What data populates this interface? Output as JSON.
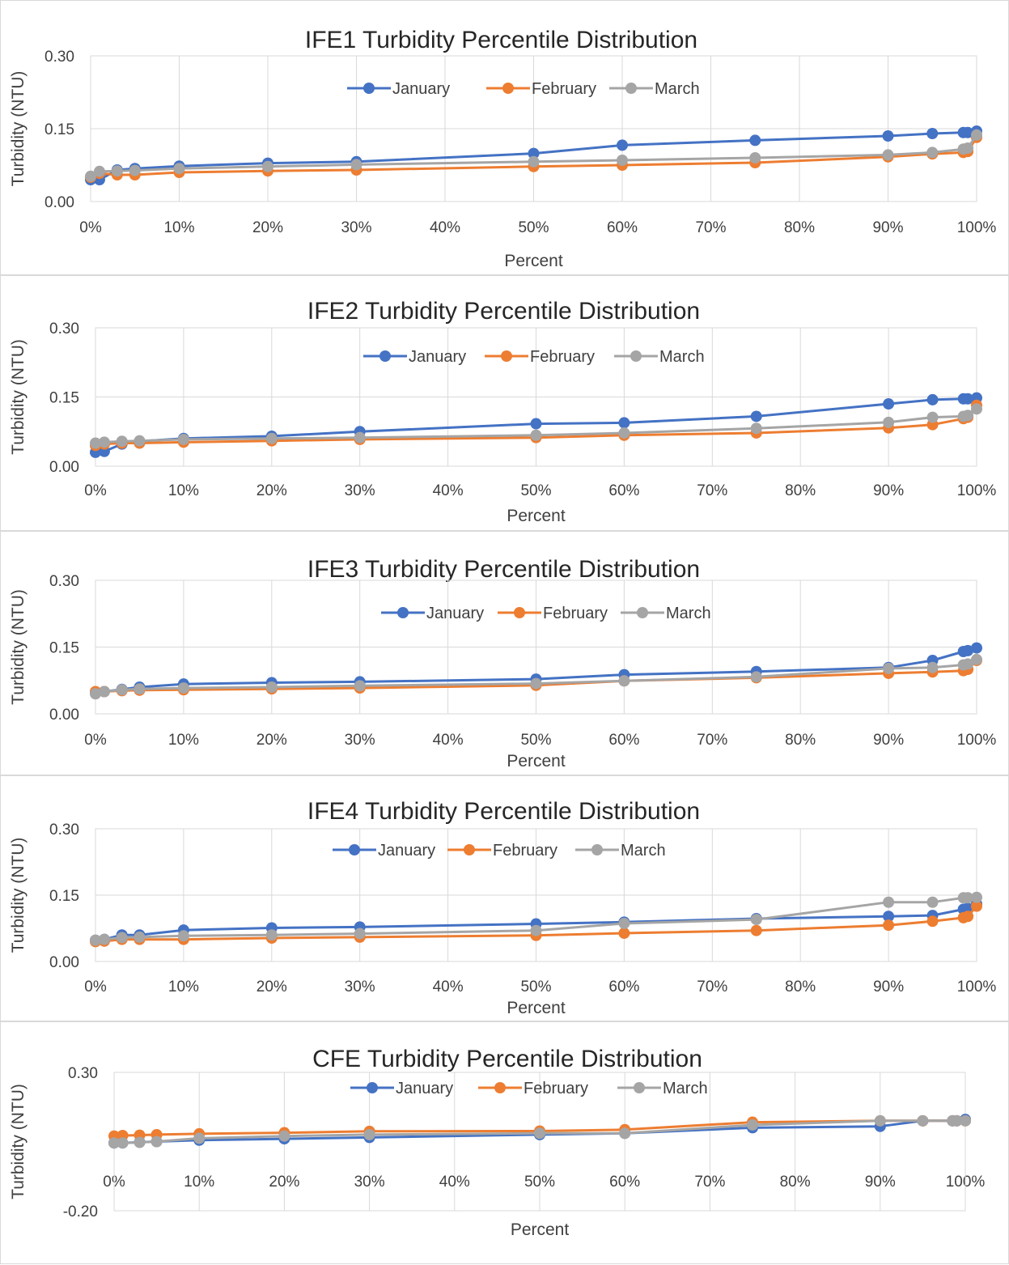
{
  "colors": {
    "January": "#4472c4",
    "February": "#ed7d31",
    "March": "#a5a5a5"
  },
  "chart_data": [
    {
      "type": "line",
      "title": "IFE1 Turbidity Percentile Distribution",
      "xlabel": "Percent",
      "ylabel": "Turbidity (NTU)",
      "x": [
        0,
        1,
        3,
        5,
        10,
        20,
        30,
        50,
        60,
        75,
        90,
        95,
        98.5,
        99,
        100
      ],
      "xlim": [
        0,
        100
      ],
      "ylim": [
        0,
        0.3
      ],
      "xticks": [
        "0%",
        "10%",
        "20%",
        "30%",
        "40%",
        "50%",
        "60%",
        "70%",
        "80%",
        "90%",
        "100%"
      ],
      "yticks": [
        "0.00",
        "0.15",
        "0.30"
      ],
      "grid": true,
      "legend": "top-center",
      "series": [
        {
          "name": "January",
          "values": [
            0.045,
            0.045,
            0.065,
            0.068,
            0.073,
            0.079,
            0.082,
            0.099,
            0.116,
            0.126,
            0.135,
            0.14,
            0.142,
            0.142,
            0.145
          ]
        },
        {
          "name": "February",
          "values": [
            0.05,
            0.058,
            0.055,
            0.055,
            0.06,
            0.063,
            0.065,
            0.072,
            0.075,
            0.08,
            0.092,
            0.098,
            0.101,
            0.103,
            0.132
          ]
        },
        {
          "name": "March",
          "values": [
            0.052,
            0.062,
            0.063,
            0.064,
            0.068,
            0.072,
            0.076,
            0.082,
            0.085,
            0.09,
            0.096,
            0.101,
            0.108,
            0.11,
            0.137
          ]
        }
      ]
    },
    {
      "type": "line",
      "title": "IFE2 Turbidity Percentile Distribution",
      "xlabel": "Percent",
      "ylabel": "Turbidity (NTU)",
      "x": [
        0,
        1,
        3,
        5,
        10,
        20,
        30,
        50,
        60,
        75,
        90,
        95,
        98.5,
        99,
        100
      ],
      "xlim": [
        0,
        100
      ],
      "ylim": [
        0,
        0.3
      ],
      "xticks": [
        "0%",
        "10%",
        "20%",
        "30%",
        "40%",
        "50%",
        "60%",
        "70%",
        "80%",
        "90%",
        "100%"
      ],
      "yticks": [
        "0.00",
        "0.15",
        "0.30"
      ],
      "grid": true,
      "legend": "top-center",
      "series": [
        {
          "name": "January",
          "values": [
            0.03,
            0.032,
            0.048,
            0.054,
            0.06,
            0.065,
            0.075,
            0.092,
            0.094,
            0.108,
            0.135,
            0.144,
            0.146,
            0.146,
            0.148
          ]
        },
        {
          "name": "February",
          "values": [
            0.045,
            0.048,
            0.05,
            0.05,
            0.052,
            0.055,
            0.058,
            0.062,
            0.067,
            0.072,
            0.083,
            0.09,
            0.103,
            0.106,
            0.132
          ]
        },
        {
          "name": "March",
          "values": [
            0.05,
            0.052,
            0.054,
            0.055,
            0.058,
            0.06,
            0.062,
            0.067,
            0.072,
            0.082,
            0.095,
            0.106,
            0.108,
            0.11,
            0.124
          ]
        }
      ]
    },
    {
      "type": "line",
      "title": "IFE3 Turbidity Percentile Distribution",
      "xlabel": "Percent",
      "ylabel": "Turbidity (NTU)",
      "x": [
        0,
        1,
        3,
        5,
        10,
        20,
        30,
        50,
        60,
        75,
        90,
        95,
        98.5,
        99,
        100
      ],
      "xlim": [
        0,
        100
      ],
      "ylim": [
        0,
        0.3
      ],
      "xticks": [
        "0%",
        "10%",
        "20%",
        "30%",
        "40%",
        "50%",
        "60%",
        "70%",
        "80%",
        "90%",
        "100%"
      ],
      "yticks": [
        "0.00",
        "0.15",
        "0.30"
      ],
      "grid": true,
      "legend": "top-center",
      "series": [
        {
          "name": "January",
          "values": [
            0.047,
            0.05,
            0.055,
            0.06,
            0.067,
            0.07,
            0.072,
            0.078,
            0.088,
            0.095,
            0.104,
            0.12,
            0.14,
            0.142,
            0.148
          ]
        },
        {
          "name": "February",
          "values": [
            0.05,
            0.05,
            0.052,
            0.053,
            0.054,
            0.056,
            0.058,
            0.064,
            0.074,
            0.081,
            0.091,
            0.094,
            0.097,
            0.1,
            0.12
          ]
        },
        {
          "name": "March",
          "values": [
            0.045,
            0.05,
            0.054,
            0.056,
            0.058,
            0.06,
            0.063,
            0.068,
            0.074,
            0.083,
            0.102,
            0.104,
            0.11,
            0.112,
            0.122
          ]
        }
      ]
    },
    {
      "type": "line",
      "title": "IFE4 Turbidity Percentile Distribution",
      "xlabel": "Percent",
      "ylabel": "Turbidity (NTU)",
      "x": [
        0,
        1,
        3,
        5,
        10,
        20,
        30,
        50,
        60,
        75,
        90,
        95,
        98.5,
        99,
        100
      ],
      "xlim": [
        0,
        100
      ],
      "ylim": [
        0,
        0.3
      ],
      "xticks": [
        "0%",
        "10%",
        "20%",
        "30%",
        "40%",
        "50%",
        "60%",
        "70%",
        "80%",
        "90%",
        "100%"
      ],
      "yticks": [
        "0.00",
        "0.15",
        "0.30"
      ],
      "grid": true,
      "legend": "top-center",
      "series": [
        {
          "name": "January",
          "values": [
            0.048,
            0.05,
            0.06,
            0.06,
            0.071,
            0.076,
            0.078,
            0.085,
            0.089,
            0.097,
            0.102,
            0.104,
            0.118,
            0.12,
            0.13
          ]
        },
        {
          "name": "February",
          "values": [
            0.045,
            0.046,
            0.05,
            0.05,
            0.05,
            0.053,
            0.055,
            0.059,
            0.064,
            0.07,
            0.082,
            0.091,
            0.099,
            0.102,
            0.125
          ]
        },
        {
          "name": "March",
          "values": [
            0.048,
            0.05,
            0.054,
            0.055,
            0.058,
            0.06,
            0.063,
            0.07,
            0.086,
            0.095,
            0.134,
            0.134,
            0.144,
            0.144,
            0.145
          ]
        }
      ]
    },
    {
      "type": "line",
      "title": "CFE Turbidity Percentile Distribution",
      "xlabel": "Percent",
      "ylabel": "Turbidity (NTU)",
      "x": [
        0,
        1,
        3,
        5,
        10,
        20,
        30,
        50,
        60,
        75,
        90,
        95,
        98.5,
        99,
        100
      ],
      "xlim": [
        0,
        100
      ],
      "ylim": [
        -0.2,
        0.3
      ],
      "xticks": [
        "0%",
        "10%",
        "20%",
        "30%",
        "40%",
        "50%",
        "60%",
        "70%",
        "80%",
        "90%",
        "100%"
      ],
      "yticks": [
        "-0.20",
        "0.30"
      ],
      "grid": true,
      "legend": "top-center",
      "series": [
        {
          "name": "January",
          "values": [
            0.045,
            0.045,
            0.048,
            0.05,
            0.055,
            0.06,
            0.065,
            0.075,
            0.08,
            0.1,
            0.105,
            0.125,
            0.125,
            0.125,
            0.13
          ]
        },
        {
          "name": "February",
          "values": [
            0.07,
            0.072,
            0.073,
            0.075,
            0.078,
            0.082,
            0.087,
            0.088,
            0.093,
            0.12,
            0.125,
            0.125,
            0.125,
            0.125,
            0.125
          ]
        },
        {
          "name": "March",
          "values": [
            0.045,
            0.045,
            0.047,
            0.05,
            0.062,
            0.07,
            0.075,
            0.08,
            0.08,
            0.11,
            0.125,
            0.125,
            0.125,
            0.125,
            0.125
          ]
        }
      ]
    }
  ]
}
